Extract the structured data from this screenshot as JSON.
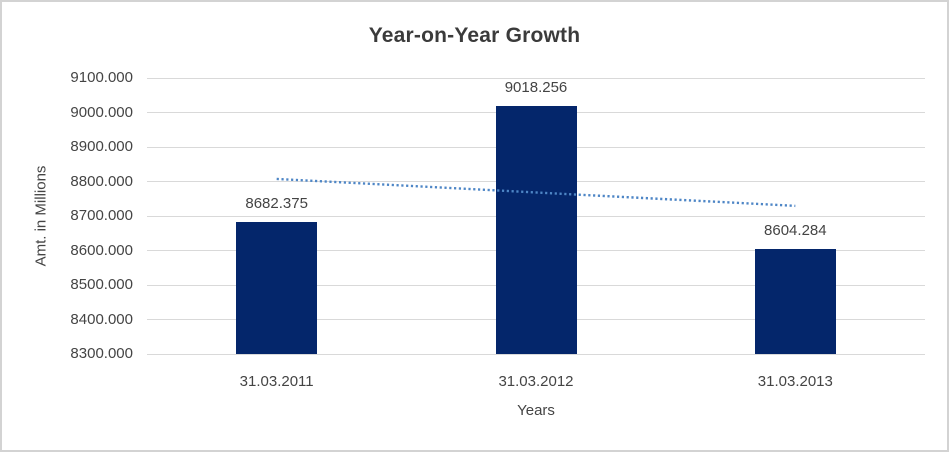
{
  "frame": {
    "background": "#ffffff",
    "border_color": "#d3d3d3"
  },
  "chart_data": {
    "type": "bar",
    "title": "Year-on-Year Growth",
    "xlabel": "Years",
    "ylabel": "Amt. in Millions",
    "categories": [
      "31.03.2011",
      "31.03.2012",
      "31.03.2013"
    ],
    "values": [
      8682.375,
      9018.256,
      8604.284
    ],
    "data_labels": [
      "8682.375",
      "9018.256",
      "8604.284"
    ],
    "ylim": [
      8300,
      9100
    ],
    "ytick_step": 100,
    "ytick_labels": [
      "8300.000",
      "8400.000",
      "8500.000",
      "8600.000",
      "8700.000",
      "8800.000",
      "8900.000",
      "9000.000",
      "9100.000"
    ],
    "grid": true,
    "legend_position": "none",
    "bar_color": "#04266b",
    "trendline": {
      "type": "linear",
      "style": "dotted",
      "color": "#4e86c6",
      "start_value": 8807.3,
      "end_value": 8729.3
    }
  },
  "styles": {
    "title_color": "#3b3b3b",
    "label_color": "#444444",
    "gridline_color": "#d9d9d9"
  }
}
